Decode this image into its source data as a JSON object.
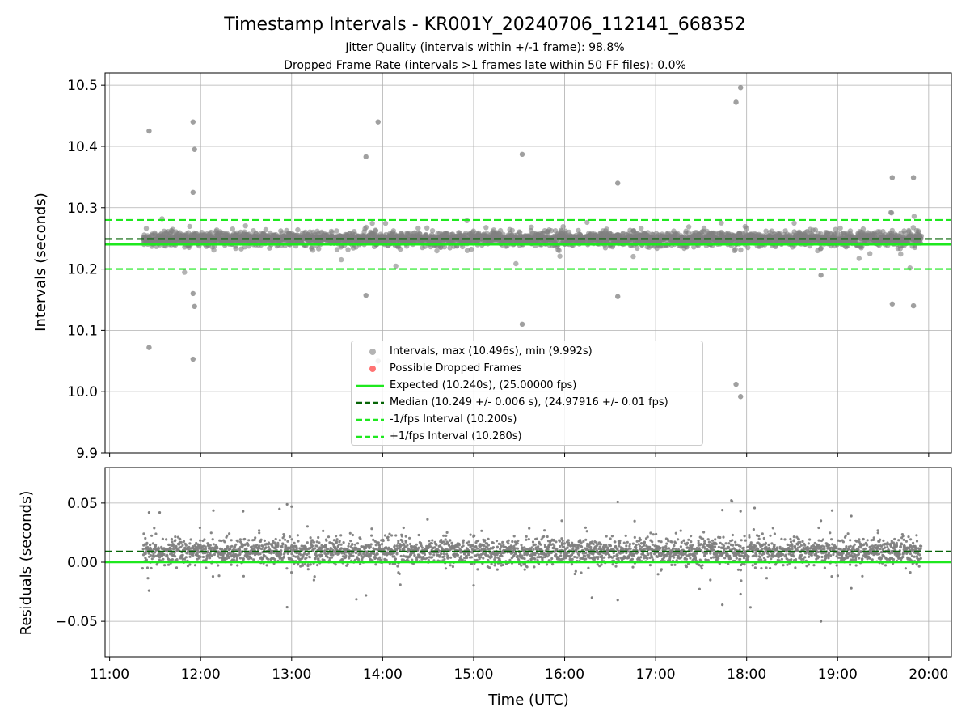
{
  "title": "Timestamp Intervals - KR001Y_20240706_112141_668352",
  "subtitle_1": "Jitter Quality (intervals within +/-1 frame): 98.8%",
  "subtitle_2": "Dropped Frame Rate (intervals >1 frames late within 50 FF files): 0.0%",
  "colors": {
    "scatter_points": "#808080",
    "expected_line": "#1ee81e",
    "median_line": "#066406",
    "interval_lines": "#1ee81e",
    "dropped_frames": "#ff5050",
    "grid": "#b0b0b0"
  },
  "legend": {
    "items": [
      {
        "label": "Intervals, max (10.496s), min (9.992s)",
        "marker": "gray-dot"
      },
      {
        "label": "Possible Dropped Frames",
        "marker": "red-dot"
      },
      {
        "label": "Expected (10.240s), (25.00000 fps)",
        "marker": "green-solid-line"
      },
      {
        "label": "Median (10.249 +/- 0.006 s), (24.97916 +/- 0.01 fps)",
        "marker": "darkgreen-dashed-line"
      },
      {
        "label": "-1/fps Interval (10.200s)",
        "marker": "green-dashed-line"
      },
      {
        "label": "+1/fps Interval (10.280s)",
        "marker": "green-dashed-line"
      }
    ],
    "placement": "lower-center"
  },
  "chart_data": [
    {
      "type": "scatter",
      "panel": "intervals",
      "ylabel": "Intervals (seconds)",
      "xlabel": "",
      "ylim": [
        9.9,
        10.52
      ],
      "yticks": [
        9.9,
        10.0,
        10.1,
        10.2,
        10.3,
        10.4,
        10.5
      ],
      "ytick_labels": [
        "9.9",
        "10.0",
        "10.1",
        "10.2",
        "10.3",
        "10.4",
        "10.5"
      ],
      "xlim_hours": [
        10.95,
        20.25
      ],
      "grid": true,
      "reference_lines": {
        "expected": 10.24,
        "median": 10.249,
        "minus_one_fps": 10.2,
        "plus_one_fps": 10.28
      },
      "series_summary": {
        "x_start": "11:22",
        "x_end": "19:55",
        "y_center": 10.249,
        "y_spread": 0.006,
        "max": 10.496,
        "min": 9.992
      },
      "outliers": [
        {
          "x": "11:26",
          "y": 10.425
        },
        {
          "x": "11:26",
          "y": 10.072
        },
        {
          "x": "11:55",
          "y": 10.44
        },
        {
          "x": "11:56",
          "y": 10.395
        },
        {
          "x": "11:55",
          "y": 10.325
        },
        {
          "x": "11:55",
          "y": 10.16
        },
        {
          "x": "11:56",
          "y": 10.139
        },
        {
          "x": "11:55",
          "y": 10.053
        },
        {
          "x": "13:49",
          "y": 10.383
        },
        {
          "x": "13:49",
          "y": 10.157
        },
        {
          "x": "13:57",
          "y": 10.44
        },
        {
          "x": "13:57",
          "y": 10.05
        },
        {
          "x": "15:32",
          "y": 10.387
        },
        {
          "x": "15:32",
          "y": 10.11
        },
        {
          "x": "16:35",
          "y": 10.34
        },
        {
          "x": "16:35",
          "y": 10.155
        },
        {
          "x": "17:53",
          "y": 10.472
        },
        {
          "x": "17:56",
          "y": 10.496
        },
        {
          "x": "17:53",
          "y": 10.012
        },
        {
          "x": "17:56",
          "y": 9.992
        },
        {
          "x": "18:49",
          "y": 10.19
        },
        {
          "x": "19:36",
          "y": 10.349
        },
        {
          "x": "19:36",
          "y": 10.143
        },
        {
          "x": "19:50",
          "y": 10.349
        },
        {
          "x": "19:50",
          "y": 10.14
        }
      ]
    },
    {
      "type": "scatter",
      "panel": "residuals",
      "ylabel": "Residuals (seconds)",
      "xlabel": "Time (UTC)",
      "ylim": [
        -0.08,
        0.08
      ],
      "yticks": [
        -0.05,
        0.0,
        0.05
      ],
      "ytick_labels": [
        "−0.05",
        "0.00",
        "0.05"
      ],
      "xlim_hours": [
        10.95,
        20.25
      ],
      "xticks": [
        "11:00",
        "12:00",
        "13:00",
        "14:00",
        "15:00",
        "16:00",
        "17:00",
        "18:00",
        "19:00",
        "20:00"
      ],
      "grid": true,
      "reference_lines": {
        "zero": 0.0,
        "median_offset": 0.009
      },
      "series_summary": {
        "x_start": "11:22",
        "x_end": "19:55",
        "y_center": 0.009,
        "y_spread": 0.006
      },
      "outliers": [
        {
          "x": "12:57",
          "y": 0.049
        },
        {
          "x": "12:52",
          "y": 0.045
        },
        {
          "x": "13:00",
          "y": 0.047
        },
        {
          "x": "16:35",
          "y": 0.051
        },
        {
          "x": "17:44",
          "y": 0.044
        },
        {
          "x": "17:56",
          "y": 0.043
        },
        {
          "x": "12:28",
          "y": 0.043
        },
        {
          "x": "11:26",
          "y": 0.042
        },
        {
          "x": "11:33",
          "y": 0.042
        },
        {
          "x": "19:09",
          "y": 0.039
        },
        {
          "x": "18:49",
          "y": 0.035
        },
        {
          "x": "12:57",
          "y": -0.038
        },
        {
          "x": "13:49",
          "y": -0.028
        },
        {
          "x": "16:35",
          "y": -0.032
        },
        {
          "x": "17:44",
          "y": -0.036
        },
        {
          "x": "17:56",
          "y": -0.027
        },
        {
          "x": "18:49",
          "y": -0.05
        },
        {
          "x": "19:09",
          "y": -0.022
        },
        {
          "x": "11:26",
          "y": -0.024
        },
        {
          "x": "16:18",
          "y": -0.03
        }
      ]
    }
  ]
}
